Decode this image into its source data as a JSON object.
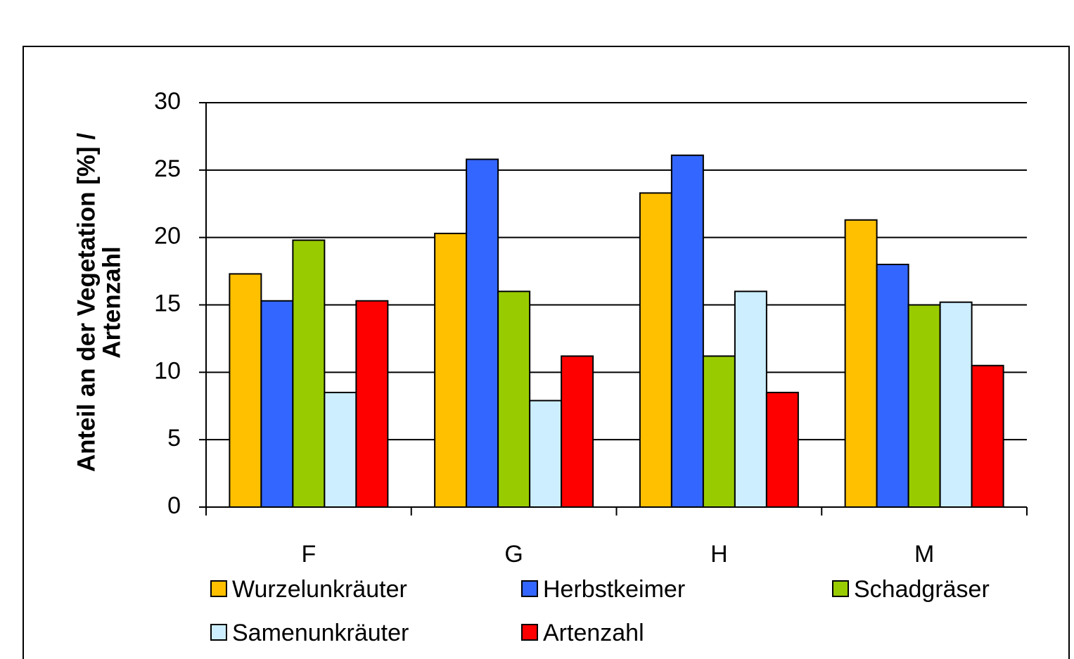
{
  "chart_data": {
    "type": "bar",
    "y_label": [
      "Anteil an der Vegetation  [%] /",
      "Artenzahl"
    ],
    "categories": [
      "F",
      "G",
      "H",
      "M"
    ],
    "series": [
      {
        "name": "Wurzelunkräuter",
        "color": "#ffc000",
        "values": [
          17.3,
          20.3,
          23.3,
          21.3
        ]
      },
      {
        "name": "Herbstkeimer",
        "color": "#3366ff",
        "values": [
          15.3,
          25.8,
          26.1,
          18
        ]
      },
      {
        "name": "Schadgräser",
        "color": "#99cc00",
        "values": [
          19.8,
          16,
          11.2,
          15
        ]
      },
      {
        "name": "Samenunkräuter",
        "color": "#cceeff",
        "values": [
          8.5,
          7.9,
          16,
          15.2
        ]
      },
      {
        "name": "Artenzahl",
        "color": "#ff0000",
        "values": [
          15.3,
          11.2,
          8.5,
          10.5
        ]
      }
    ],
    "ylim": [
      0,
      30
    ],
    "yticks": [
      0,
      5,
      10,
      15,
      20,
      25,
      30
    ],
    "grid": true,
    "legend": "bottom"
  }
}
